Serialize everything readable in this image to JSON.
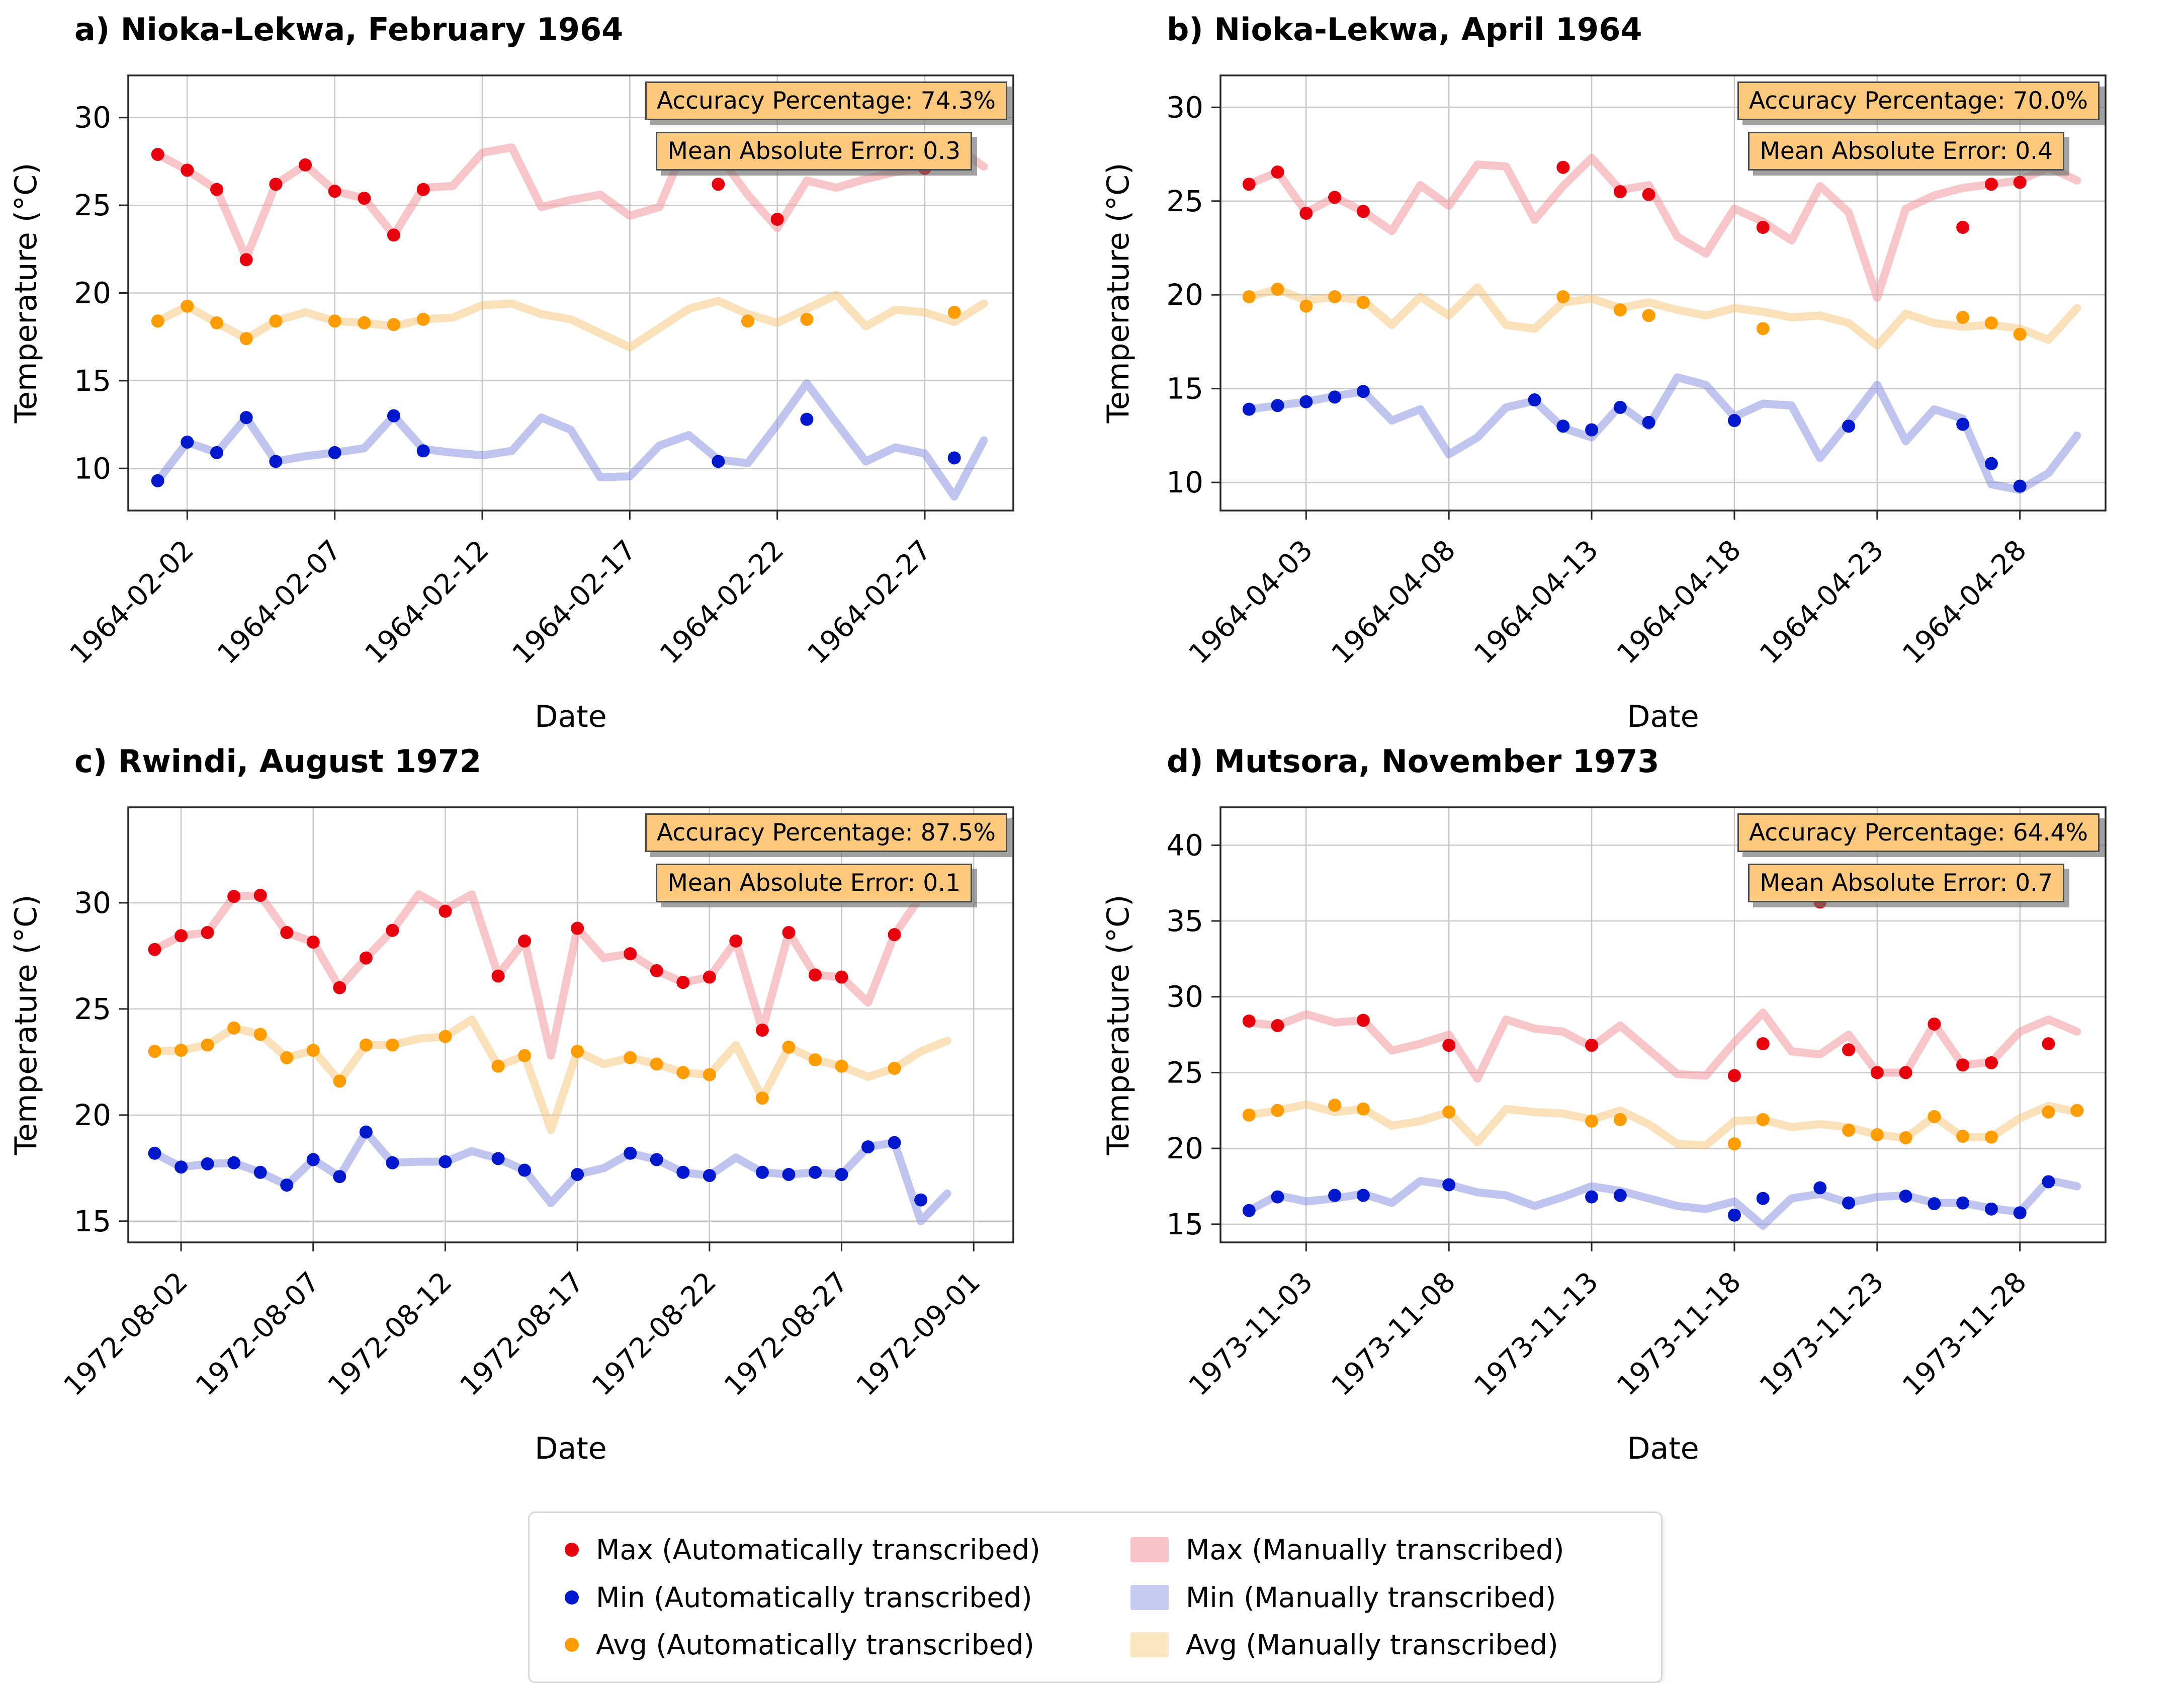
{
  "figure": {
    "x_axis_label": "Date",
    "y_axis_label": "Temperature (°C)",
    "colors": {
      "max_auto_dot": "#e8000d",
      "min_auto_dot": "#0018cd",
      "avg_auto_dot": "#ff9d00",
      "max_manual_band": "#f9c4c8",
      "min_manual_band": "#c6cbf2",
      "avg_manual_band": "#fbe6c2",
      "annotation_bg": "#fbc87c",
      "grid": "#c9c9c9"
    }
  },
  "legend": {
    "items": [
      {
        "label": "Max (Automatically transcribed)",
        "marker": "dot",
        "color": "#e8000d"
      },
      {
        "label": "Max (Manually transcribed)",
        "marker": "patch",
        "color": "#f9c4c8"
      },
      {
        "label": "Min (Automatically transcribed)",
        "marker": "dot",
        "color": "#0018cd"
      },
      {
        "label": "Min (Manually transcribed)",
        "marker": "patch",
        "color": "#c6cbf2"
      },
      {
        "label": "Avg (Automatically transcribed)",
        "marker": "dot",
        "color": "#ff9d00"
      },
      {
        "label": "Avg (Manually transcribed)",
        "marker": "patch",
        "color": "#fbe6c2"
      }
    ]
  },
  "chart_data": [
    {
      "id": "a",
      "type": "line",
      "title": "a) Nioka-Lekwa, February 1964",
      "accuracy_label": "Accuracy Percentage: 74.3%",
      "mae_label": "Mean Absolute Error: 0.3",
      "x_label": "Date",
      "y_label": "Temperature (°C)",
      "x_ticks": [
        "1964-02-02",
        "1964-02-07",
        "1964-02-12",
        "1964-02-17",
        "1964-02-22",
        "1964-02-27"
      ],
      "x_tick_days": [
        2,
        7,
        12,
        17,
        22,
        27
      ],
      "y_ticks": [
        10,
        15,
        20,
        25,
        30
      ],
      "ylim": [
        7.6,
        32.4
      ],
      "x_max": 30,
      "days": 29,
      "series": {
        "max_manual": [
          27.9,
          27.0,
          25.9,
          22.0,
          26.2,
          27.3,
          25.8,
          25.4,
          23.3,
          26.0,
          26.1,
          28.0,
          28.3,
          24.9,
          25.3,
          25.6,
          24.4,
          24.9,
          28.9,
          27.9,
          25.6,
          23.7,
          26.4,
          26.0,
          26.5,
          26.9,
          27.1,
          28.4,
          27.2
        ],
        "avg_manual": [
          18.4,
          19.25,
          18.3,
          17.4,
          18.4,
          18.9,
          18.4,
          18.3,
          18.1,
          18.5,
          18.6,
          19.3,
          19.4,
          18.8,
          18.5,
          17.7,
          16.9,
          18.0,
          19.1,
          19.55,
          18.8,
          18.3,
          19.1,
          19.9,
          18.1,
          19.05,
          18.9,
          18.35,
          19.4
        ],
        "min_manual": [
          9.3,
          11.5,
          10.9,
          12.9,
          10.4,
          10.7,
          10.9,
          11.15,
          13.0,
          11.1,
          10.9,
          10.75,
          11.0,
          12.9,
          12.2,
          9.5,
          9.55,
          11.3,
          11.9,
          10.5,
          10.3,
          12.5,
          14.85,
          12.6,
          10.4,
          11.2,
          10.85,
          8.4,
          11.6
        ],
        "max_auto": [
          27.9,
          27.0,
          25.9,
          21.9,
          26.2,
          27.3,
          25.8,
          25.4,
          23.3,
          25.9,
          null,
          null,
          null,
          null,
          null,
          null,
          null,
          null,
          null,
          26.2,
          null,
          24.2,
          null,
          null,
          null,
          null,
          27.1,
          null,
          null
        ],
        "avg_auto": [
          18.4,
          19.25,
          18.3,
          17.4,
          18.4,
          null,
          18.4,
          18.3,
          18.2,
          18.5,
          null,
          null,
          null,
          null,
          null,
          null,
          null,
          null,
          null,
          null,
          18.4,
          null,
          18.5,
          null,
          null,
          null,
          null,
          18.9,
          null
        ],
        "min_auto": [
          9.3,
          11.5,
          10.9,
          12.9,
          10.4,
          null,
          10.9,
          null,
          13.0,
          11.0,
          null,
          null,
          null,
          null,
          null,
          null,
          null,
          null,
          null,
          10.4,
          null,
          null,
          12.8,
          null,
          null,
          null,
          null,
          10.6,
          null
        ]
      }
    },
    {
      "id": "b",
      "type": "line",
      "title": "b) Nioka-Lekwa, April 1964",
      "accuracy_label": "Accuracy Percentage: 70.0%",
      "mae_label": "Mean Absolute Error: 0.4",
      "x_label": "Date",
      "y_label": "Temperature (°C)",
      "x_ticks": [
        "1964-04-03",
        "1964-04-08",
        "1964-04-13",
        "1964-04-18",
        "1964-04-23",
        "1964-04-28"
      ],
      "x_tick_days": [
        3,
        8,
        13,
        18,
        23,
        28
      ],
      "y_ticks": [
        10,
        15,
        20,
        25,
        30
      ],
      "ylim": [
        8.5,
        31.7
      ],
      "x_max": 31,
      "days": 30,
      "series": {
        "max_manual": [
          25.9,
          26.55,
          24.4,
          25.2,
          24.45,
          23.4,
          25.85,
          24.75,
          26.95,
          26.85,
          24.0,
          25.8,
          27.3,
          25.6,
          25.85,
          23.1,
          22.2,
          24.6,
          23.9,
          22.9,
          25.8,
          24.4,
          19.85,
          24.6,
          25.3,
          25.7,
          25.9,
          26.1,
          26.8,
          26.1
        ],
        "avg_manual": [
          19.9,
          20.3,
          19.7,
          19.9,
          19.7,
          18.4,
          19.9,
          18.9,
          20.4,
          18.4,
          18.2,
          19.6,
          19.8,
          19.3,
          19.6,
          19.2,
          18.9,
          19.3,
          19.1,
          18.8,
          18.9,
          18.5,
          17.3,
          19.0,
          18.5,
          18.3,
          18.4,
          18.2,
          17.6,
          19.3
        ],
        "min_manual": [
          13.9,
          14.1,
          14.3,
          14.6,
          14.85,
          13.3,
          13.9,
          11.5,
          12.4,
          14.0,
          14.35,
          12.9,
          12.4,
          14.1,
          13.0,
          15.6,
          15.2,
          13.5,
          14.2,
          14.1,
          11.3,
          13.2,
          15.2,
          12.2,
          13.9,
          13.4,
          9.9,
          9.6,
          10.5,
          12.5
        ],
        "max_auto": [
          25.9,
          26.55,
          24.35,
          25.2,
          24.45,
          null,
          null,
          null,
          null,
          null,
          null,
          26.8,
          null,
          25.5,
          25.35,
          null,
          null,
          null,
          23.6,
          null,
          null,
          null,
          null,
          null,
          null,
          23.6,
          25.9,
          26.0,
          null,
          null
        ],
        "avg_auto": [
          19.9,
          20.3,
          19.4,
          19.9,
          19.6,
          null,
          null,
          null,
          null,
          null,
          null,
          19.9,
          null,
          19.2,
          18.9,
          null,
          null,
          null,
          18.2,
          null,
          null,
          null,
          null,
          null,
          null,
          18.8,
          18.5,
          17.9,
          null,
          null
        ],
        "min_auto": [
          13.9,
          14.1,
          14.3,
          14.55,
          14.85,
          null,
          null,
          null,
          null,
          null,
          14.4,
          13.0,
          12.8,
          14.0,
          13.2,
          null,
          null,
          13.3,
          null,
          null,
          null,
          13.0,
          null,
          null,
          null,
          13.1,
          11.0,
          9.8,
          null,
          null
        ]
      }
    },
    {
      "id": "c",
      "type": "line",
      "title": "c) Rwindi, August 1972",
      "accuracy_label": "Accuracy Percentage: 87.5%",
      "mae_label": "Mean Absolute Error: 0.1",
      "x_label": "Date",
      "y_label": "Temperature (°C)",
      "x_ticks": [
        "1972-08-02",
        "1972-08-07",
        "1972-08-12",
        "1972-08-17",
        "1972-08-22",
        "1972-08-27",
        "1972-09-01"
      ],
      "x_tick_days": [
        2,
        7,
        12,
        17,
        22,
        27,
        32
      ],
      "y_ticks": [
        15,
        20,
        25,
        30
      ],
      "ylim": [
        14.0,
        34.5
      ],
      "x_max": 33.5,
      "days": 31,
      "series": {
        "max_manual": [
          27.8,
          28.45,
          28.6,
          30.3,
          30.35,
          28.6,
          28.15,
          26.0,
          27.4,
          28.7,
          30.4,
          29.7,
          30.4,
          26.6,
          28.2,
          22.8,
          28.8,
          27.4,
          27.6,
          26.8,
          26.25,
          26.5,
          28.2,
          24.0,
          28.6,
          26.6,
          26.5,
          25.3,
          28.5,
          30.3,
          30.6
        ],
        "avg_manual": [
          23.0,
          23.05,
          23.3,
          24.1,
          23.8,
          22.7,
          23.05,
          21.6,
          23.3,
          23.3,
          23.6,
          23.7,
          24.5,
          22.3,
          22.8,
          19.3,
          23.0,
          22.4,
          22.7,
          22.4,
          22.0,
          21.9,
          23.3,
          20.8,
          23.2,
          22.6,
          22.3,
          21.8,
          22.2,
          23.0,
          23.5
        ],
        "min_manual": [
          18.2,
          17.55,
          17.7,
          17.75,
          17.3,
          16.7,
          17.9,
          17.1,
          19.2,
          17.75,
          17.8,
          17.8,
          18.3,
          17.95,
          17.4,
          15.85,
          17.2,
          17.5,
          18.2,
          17.9,
          17.3,
          17.15,
          18.0,
          17.3,
          17.2,
          17.3,
          17.2,
          18.5,
          18.7,
          15.0,
          16.3
        ],
        "max_auto": [
          27.8,
          28.45,
          28.6,
          30.3,
          30.35,
          28.6,
          28.15,
          26.0,
          27.4,
          28.7,
          null,
          29.6,
          null,
          26.55,
          28.2,
          null,
          28.8,
          null,
          27.6,
          26.8,
          26.25,
          26.5,
          28.2,
          24.0,
          28.6,
          26.6,
          26.5,
          null,
          28.5,
          null,
          null
        ],
        "avg_auto": [
          23.0,
          23.05,
          23.3,
          24.1,
          23.8,
          22.7,
          23.05,
          21.6,
          23.3,
          23.3,
          null,
          23.7,
          null,
          22.3,
          22.8,
          null,
          23.0,
          null,
          22.7,
          22.4,
          22.0,
          21.9,
          null,
          20.8,
          23.2,
          22.6,
          22.3,
          null,
          22.2,
          null,
          null
        ],
        "min_auto": [
          18.2,
          17.55,
          17.7,
          17.75,
          17.3,
          16.7,
          17.9,
          17.1,
          19.2,
          17.75,
          null,
          17.8,
          null,
          17.95,
          17.4,
          null,
          17.2,
          null,
          18.2,
          17.9,
          17.3,
          17.15,
          null,
          17.3,
          17.2,
          17.3,
          17.2,
          18.5,
          18.7,
          16.0,
          null
        ]
      }
    },
    {
      "id": "d",
      "type": "line",
      "title": "d) Mutsora, November 1973",
      "accuracy_label": "Accuracy Percentage: 64.4%",
      "mae_label": "Mean Absolute Error: 0.7",
      "x_label": "Date",
      "y_label": "Temperature (°C)",
      "x_ticks": [
        "1973-11-03",
        "1973-11-08",
        "1973-11-13",
        "1973-11-18",
        "1973-11-23",
        "1973-11-28"
      ],
      "x_tick_days": [
        3,
        8,
        13,
        18,
        23,
        28
      ],
      "y_ticks": [
        15,
        20,
        25,
        30,
        35,
        40
      ],
      "ylim": [
        13.8,
        42.5
      ],
      "x_max": 31,
      "days": 30,
      "series": {
        "max_manual": [
          28.3,
          28.1,
          28.85,
          28.3,
          28.45,
          26.45,
          26.9,
          27.5,
          24.6,
          28.5,
          27.9,
          27.7,
          26.7,
          28.1,
          26.5,
          24.9,
          24.8,
          27.0,
          28.95,
          26.4,
          26.2,
          27.5,
          25.0,
          25.0,
          28.2,
          25.5,
          25.7,
          27.7,
          28.5,
          27.7
        ],
        "avg_manual": [
          22.2,
          22.5,
          22.9,
          22.4,
          22.6,
          21.5,
          21.8,
          22.4,
          20.4,
          22.6,
          22.4,
          22.3,
          21.9,
          22.5,
          21.6,
          20.3,
          20.2,
          21.8,
          21.9,
          21.4,
          21.6,
          21.4,
          20.9,
          20.7,
          22.1,
          20.75,
          20.75,
          22.0,
          22.8,
          22.4
        ],
        "min_manual": [
          15.9,
          16.9,
          16.5,
          16.7,
          17.0,
          16.4,
          17.85,
          17.6,
          17.1,
          16.9,
          16.2,
          16.8,
          17.5,
          17.2,
          16.7,
          16.2,
          16.0,
          16.5,
          14.9,
          16.7,
          17.0,
          16.4,
          16.8,
          16.9,
          16.4,
          16.4,
          16.05,
          15.8,
          17.9,
          17.5
        ],
        "max_auto": [
          28.4,
          28.1,
          null,
          null,
          28.45,
          null,
          null,
          26.8,
          null,
          null,
          null,
          null,
          26.8,
          null,
          null,
          null,
          null,
          24.8,
          26.9,
          null,
          36.25,
          26.5,
          25.0,
          25.0,
          28.2,
          25.5,
          25.65,
          null,
          26.9,
          null
        ],
        "avg_auto": [
          22.2,
          22.5,
          null,
          22.85,
          22.6,
          null,
          null,
          22.4,
          null,
          null,
          null,
          null,
          21.8,
          21.9,
          null,
          null,
          null,
          20.3,
          21.9,
          null,
          null,
          21.2,
          20.9,
          20.7,
          22.1,
          20.8,
          20.75,
          null,
          22.4,
          22.5
        ],
        "min_auto": [
          15.9,
          16.8,
          null,
          16.9,
          16.9,
          null,
          null,
          17.6,
          null,
          null,
          null,
          null,
          16.8,
          16.9,
          null,
          null,
          null,
          15.6,
          16.7,
          null,
          17.4,
          16.4,
          null,
          16.85,
          16.35,
          16.4,
          16.0,
          15.75,
          17.8,
          null
        ]
      }
    }
  ]
}
